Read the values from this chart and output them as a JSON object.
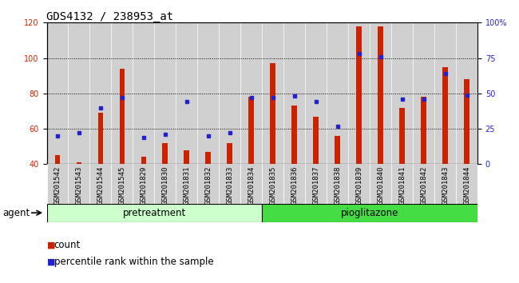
{
  "title": "GDS4132 / 238953_at",
  "samples": [
    "GSM201542",
    "GSM201543",
    "GSM201544",
    "GSM201545",
    "GSM201829",
    "GSM201830",
    "GSM201831",
    "GSM201832",
    "GSM201833",
    "GSM201834",
    "GSM201835",
    "GSM201836",
    "GSM201837",
    "GSM201838",
    "GSM201839",
    "GSM201840",
    "GSM201841",
    "GSM201842",
    "GSM201843",
    "GSM201844"
  ],
  "count_values": [
    45,
    41,
    69,
    94,
    44,
    52,
    48,
    47,
    52,
    78,
    97,
    73,
    67,
    56,
    118,
    118,
    72,
    78,
    95,
    88
  ],
  "percentile_values": [
    20,
    22,
    40,
    47,
    19,
    21,
    44,
    20,
    22,
    47,
    47,
    48,
    44,
    27,
    78,
    76,
    46,
    46,
    64,
    49
  ],
  "pretreatment_count": 10,
  "pioglitazone_count": 10,
  "ylim_left": [
    40,
    120
  ],
  "ylim_right": [
    0,
    100
  ],
  "yticks_left": [
    40,
    60,
    80,
    100,
    120
  ],
  "yticks_right": [
    0,
    25,
    50,
    75,
    100
  ],
  "yticklabels_right": [
    "0",
    "25",
    "50",
    "75",
    "100%"
  ],
  "bar_color": "#cc2200",
  "dot_color": "#2222cc",
  "bar_width": 0.25,
  "plot_bg": "#ffffff",
  "cell_bg": "#d0d0d0",
  "pretreatment_bg": "#ccffcc",
  "pioglitazone_bg": "#44dd44",
  "agent_label": "agent",
  "pretreatment_label": "pretreatment",
  "pioglitazone_label": "pioglitazone",
  "legend_count": "count",
  "legend_percentile": "percentile rank within the sample",
  "grid_color": "black",
  "title_fontsize": 10,
  "tick_fontsize": 7,
  "xlabel_fontsize": 6.5,
  "label_fontsize": 8.5
}
